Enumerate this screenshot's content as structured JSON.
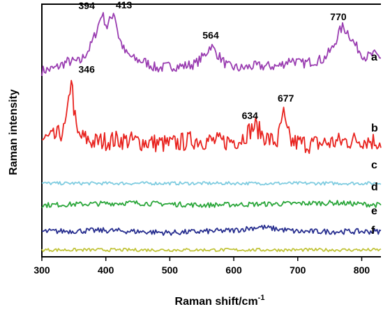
{
  "chart_data": {
    "type": "line",
    "title": "",
    "xlabel": "Raman shift/cm",
    "xlabel_superscript": "-1",
    "ylabel": "Raman intensity",
    "xlim": [
      300,
      830
    ],
    "ylim": [
      0,
      11
    ],
    "x_ticks": [
      300,
      400,
      500,
      600,
      700,
      800
    ],
    "y_ticks": false,
    "grid": false,
    "legend": "none (series tagged a–f at right end of each trace)",
    "series": [
      {
        "name": "a",
        "color": "#9a3db1",
        "baseline": 8.0,
        "points": [
          [
            300,
            8.1
          ],
          [
            320,
            8.2
          ],
          [
            340,
            8.5
          ],
          [
            360,
            8.5
          ],
          [
            375,
            9.1
          ],
          [
            385,
            9.8
          ],
          [
            394,
            10.6
          ],
          [
            402,
            10.0
          ],
          [
            408,
            10.4
          ],
          [
            413,
            10.7
          ],
          [
            420,
            9.6
          ],
          [
            430,
            8.9
          ],
          [
            445,
            8.6
          ],
          [
            460,
            8.5
          ],
          [
            480,
            8.2
          ],
          [
            500,
            8.3
          ],
          [
            520,
            8.3
          ],
          [
            540,
            8.4
          ],
          [
            555,
            8.8
          ],
          [
            564,
            9.2
          ],
          [
            575,
            8.8
          ],
          [
            590,
            8.3
          ],
          [
            610,
            8.2
          ],
          [
            630,
            8.3
          ],
          [
            650,
            8.3
          ],
          [
            670,
            8.3
          ],
          [
            690,
            8.6
          ],
          [
            705,
            8.4
          ],
          [
            720,
            8.5
          ],
          [
            740,
            8.6
          ],
          [
            755,
            9.1
          ],
          [
            765,
            9.8
          ],
          [
            770,
            10.0
          ],
          [
            778,
            9.8
          ],
          [
            790,
            9.2
          ],
          [
            805,
            8.7
          ],
          [
            820,
            8.8
          ],
          [
            830,
            8.7
          ]
        ]
      },
      {
        "name": "b",
        "color": "#e8231f",
        "baseline": 5.0,
        "points": [
          [
            300,
            5.1
          ],
          [
            320,
            5.2
          ],
          [
            335,
            5.5
          ],
          [
            340,
            6.2
          ],
          [
            346,
            7.9
          ],
          [
            350,
            6.5
          ],
          [
            355,
            5.3
          ],
          [
            380,
            5.0
          ],
          [
            420,
            5.1
          ],
          [
            460,
            5.0
          ],
          [
            500,
            4.9
          ],
          [
            540,
            5.1
          ],
          [
            580,
            5.0
          ],
          [
            610,
            5.1
          ],
          [
            625,
            5.5
          ],
          [
            634,
            5.7
          ],
          [
            642,
            5.4
          ],
          [
            655,
            5.1
          ],
          [
            668,
            5.0
          ],
          [
            674,
            5.7
          ],
          [
            677,
            6.4
          ],
          [
            681,
            5.6
          ],
          [
            690,
            5.0
          ],
          [
            720,
            4.9
          ],
          [
            760,
            5.0
          ],
          [
            800,
            5.1
          ],
          [
            830,
            5.0
          ]
        ]
      },
      {
        "name": "c",
        "color": "#7fcce0",
        "baseline": 3.2,
        "points": [
          [
            300,
            3.2
          ],
          [
            830,
            3.2
          ]
        ]
      },
      {
        "name": "d",
        "color": "#2aa63a",
        "baseline": 2.25,
        "points": [
          [
            300,
            2.25
          ],
          [
            440,
            2.35
          ],
          [
            550,
            2.25
          ],
          [
            760,
            2.35
          ],
          [
            830,
            2.25
          ]
        ]
      },
      {
        "name": "e",
        "color": "#272e8f",
        "baseline": 1.1,
        "points": [
          [
            300,
            1.1
          ],
          [
            400,
            1.15
          ],
          [
            500,
            1.05
          ],
          [
            600,
            1.15
          ],
          [
            640,
            1.3
          ],
          [
            700,
            1.1
          ],
          [
            830,
            1.1
          ]
        ]
      },
      {
        "name": "f",
        "color": "#c2c43b",
        "baseline": 0.3,
        "points": [
          [
            300,
            0.3
          ],
          [
            830,
            0.3
          ]
        ]
      }
    ],
    "annotations": [
      {
        "text": "394",
        "x": 394,
        "y": 10.6
      },
      {
        "text": "413",
        "x": 413,
        "y": 10.7
      },
      {
        "text": "564",
        "x": 564,
        "y": 9.2
      },
      {
        "text": "770",
        "x": 770,
        "y": 10.0
      },
      {
        "text": "346",
        "x": 346,
        "y": 7.9
      },
      {
        "text": "634",
        "x": 634,
        "y": 5.7
      },
      {
        "text": "677",
        "x": 677,
        "y": 6.4
      }
    ]
  }
}
